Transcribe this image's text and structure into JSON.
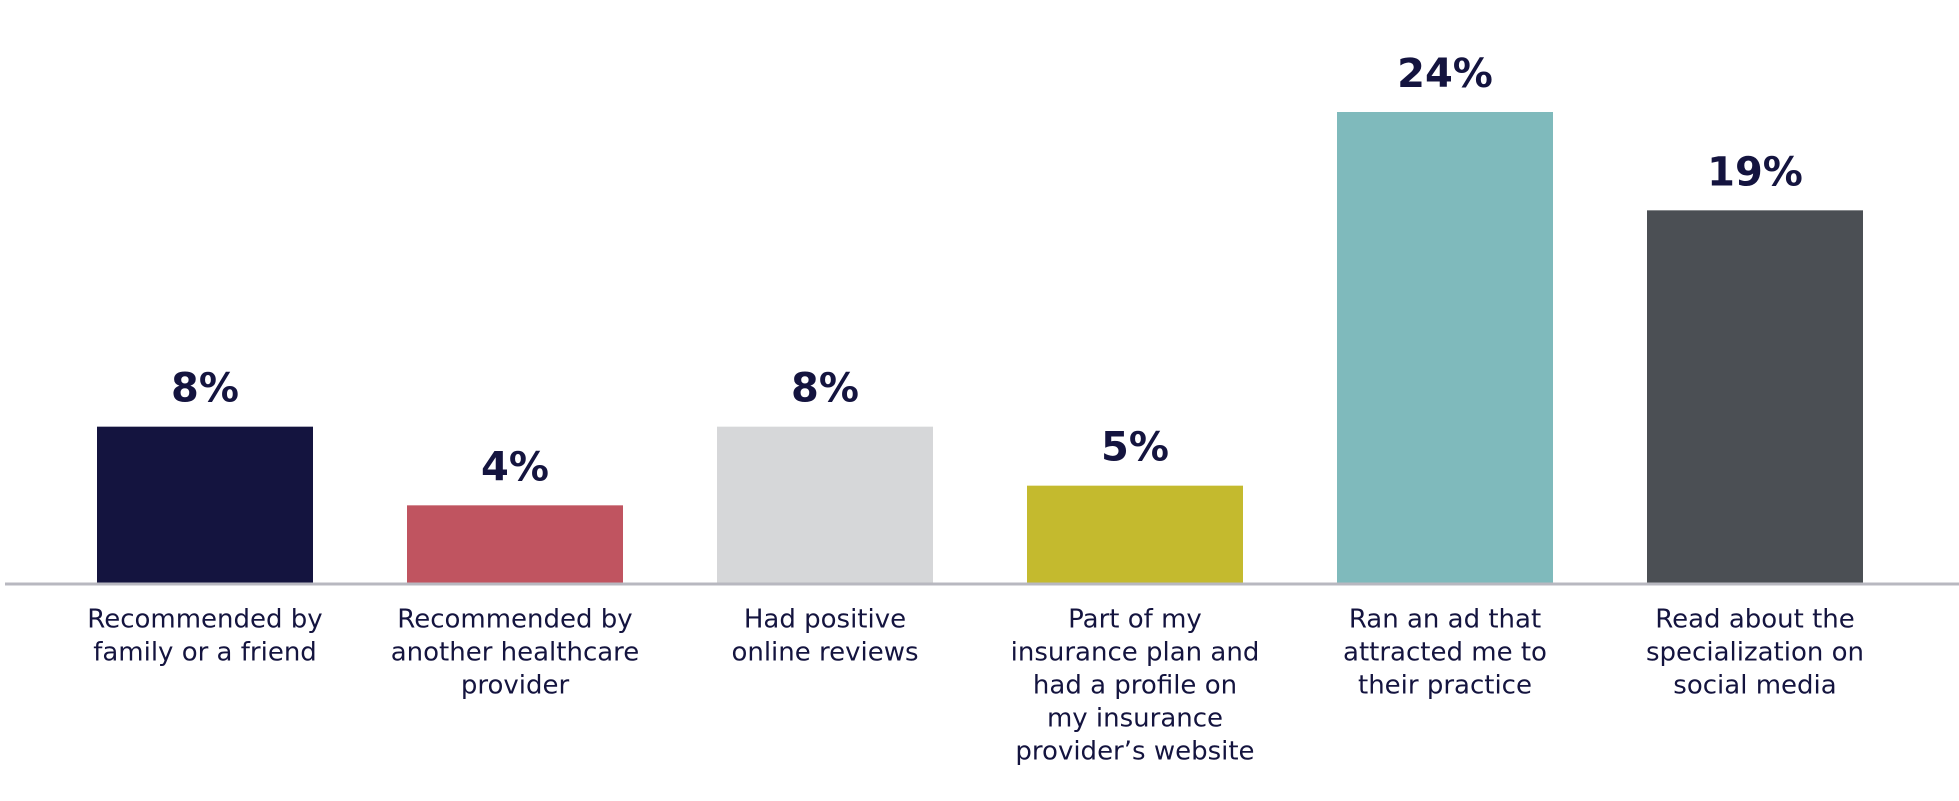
{
  "chart_data": {
    "type": "bar",
    "categories": [
      [
        "Recommended by",
        "family or a friend"
      ],
      [
        "Recommended by",
        "another healthcare",
        "provider"
      ],
      [
        "Had positive",
        "online reviews"
      ],
      [
        "Part of my",
        "insurance plan and",
        "had a profile on",
        "my insurance",
        "provider’s website"
      ],
      [
        "Ran an ad that",
        "attracted me to",
        "their practice"
      ],
      [
        "Read about the",
        "specialization on",
        "social media"
      ]
    ],
    "values": [
      8,
      4,
      8,
      5,
      24,
      19
    ],
    "value_labels": [
      "8%",
      "4%",
      "8%",
      "5%",
      "24%",
      "19%"
    ],
    "colors": [
      "#14143f",
      "#c05460",
      "#d6d7d9",
      "#c4ba2e",
      "#7fbabc",
      "#4b4f54"
    ],
    "ylim": [
      0,
      24
    ]
  }
}
